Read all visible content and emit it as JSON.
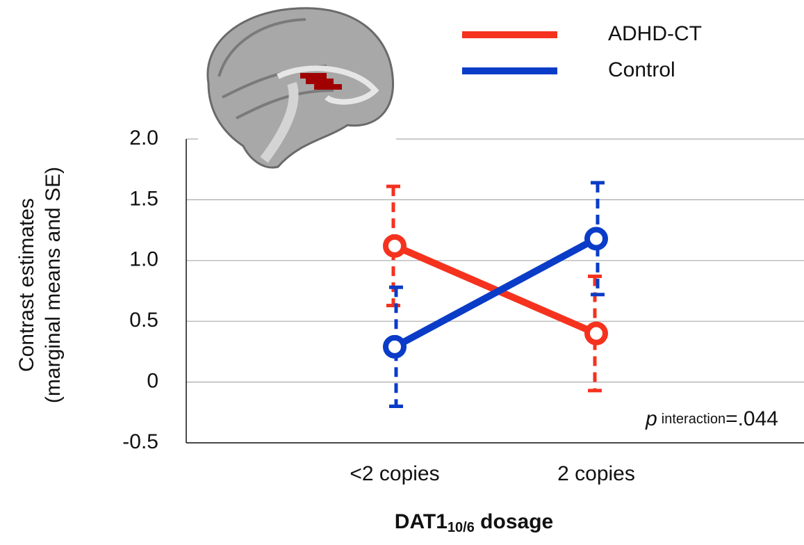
{
  "chart_data": {
    "type": "line",
    "y_label": [
      "Contrast estimates",
      "(marginal means and SE)"
    ],
    "x_label": {
      "main": "DAT1",
      "sub": "10/6",
      "rest": " dosage"
    },
    "annotation": {
      "p": "p",
      "sub": "interaction",
      "text": "=.044"
    },
    "categories": [
      "<2 copies",
      "2 copies"
    ],
    "series": [
      {
        "name": "ADHD-CT",
        "color": "#f5321e",
        "values": [
          1.12,
          0.4
        ],
        "errors": [
          0.49,
          0.47
        ]
      },
      {
        "name": "Control",
        "color": "#0a3cc8",
        "values": [
          0.29,
          1.18
        ],
        "errors": [
          0.49,
          0.46
        ]
      }
    ],
    "ylim": [
      -0.5,
      2.0
    ],
    "yticks": [
      {
        "value": -0.5,
        "label": "-0.5"
      },
      0,
      0.5,
      {
        "value": 1.0,
        "label": "1.0"
      },
      1.5,
      {
        "value": 2.0,
        "label": "2.0"
      }
    ],
    "grid": true
  }
}
